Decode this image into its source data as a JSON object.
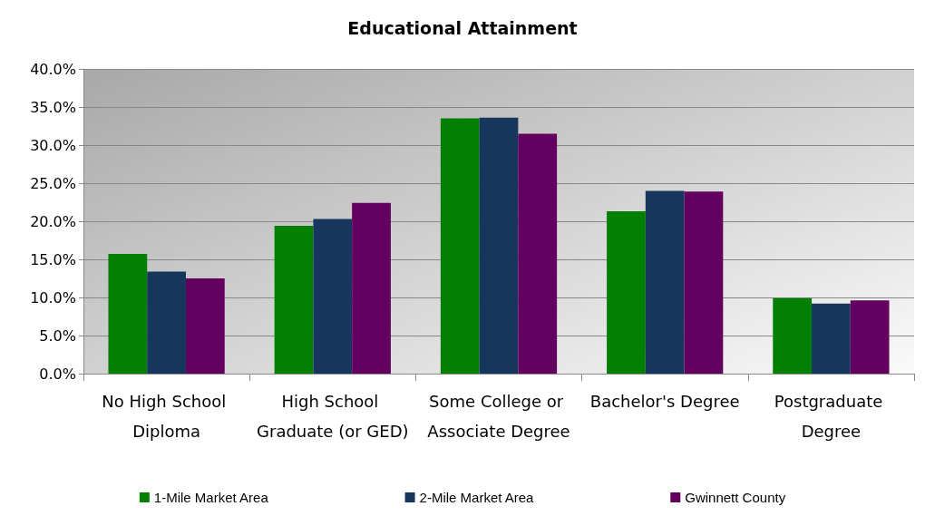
{
  "chart_data": {
    "type": "bar",
    "title": "Educational Attainment",
    "categories": [
      "No High School Diploma",
      "High School Graduate (or GED)",
      "Some College or Associate Degree",
      "Bachelor's Degree",
      "Postgraduate Degree"
    ],
    "series": [
      {
        "name": "1-Mile Market Area",
        "color": "#007f00",
        "values": [
          15.7,
          19.4,
          33.5,
          21.3,
          9.9
        ]
      },
      {
        "name": "2-Mile Market Area",
        "color": "#17365d",
        "values": [
          13.4,
          20.3,
          33.6,
          24.0,
          9.2
        ]
      },
      {
        "name": "Gwinnett County",
        "color": "#63005f",
        "values": [
          12.5,
          22.4,
          31.5,
          23.9,
          9.6
        ]
      }
    ],
    "ylim": [
      0,
      40
    ],
    "yticks": [
      {
        "value": 0,
        "label": "0.0%"
      },
      {
        "value": 5,
        "label": "5.0%"
      },
      {
        "value": 10,
        "label": "10.0%"
      },
      {
        "value": 15,
        "label": "15.0%"
      },
      {
        "value": 20,
        "label": "20.0%"
      },
      {
        "value": 25,
        "label": "25.0%"
      },
      {
        "value": 30,
        "label": "30.0%"
      },
      {
        "value": 35,
        "label": "35.0%"
      },
      {
        "value": 40,
        "label": "40.0%"
      }
    ],
    "grid": "y",
    "legend": "bottom"
  }
}
